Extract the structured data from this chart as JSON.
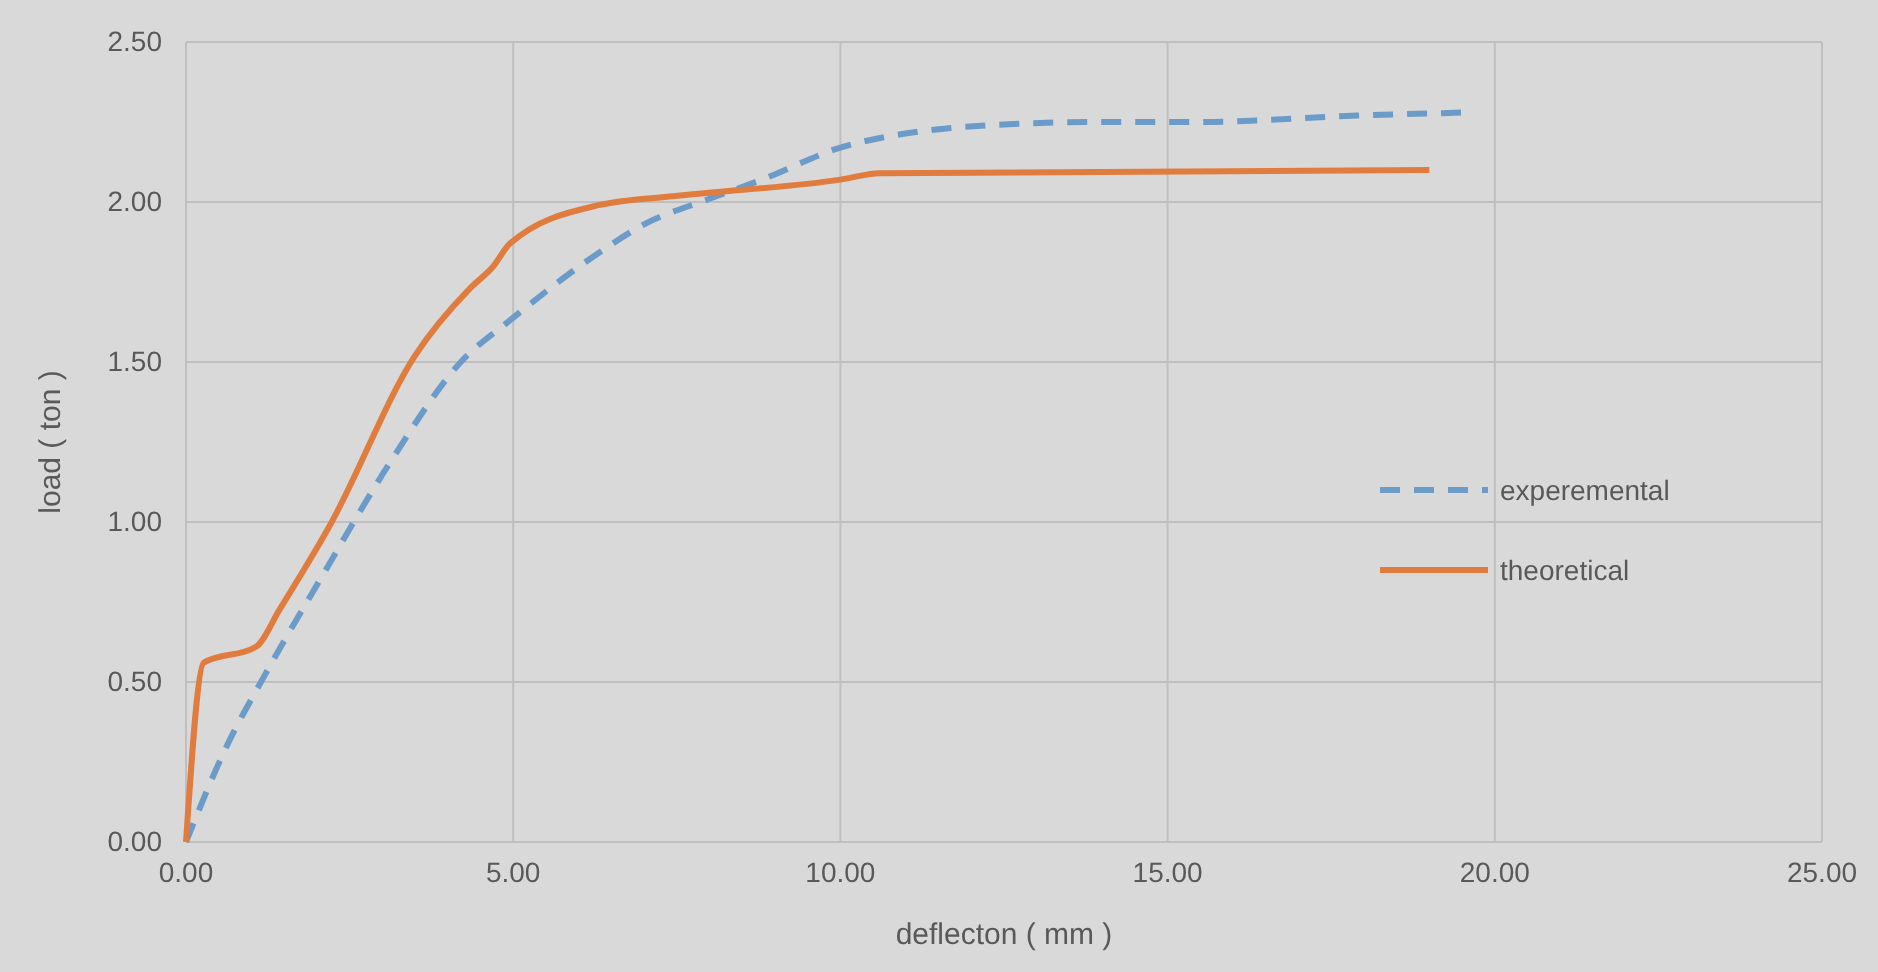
{
  "chart_data": {
    "type": "line",
    "xlabel": "deflecton ( mm )",
    "ylabel": "load ( ton )",
    "xlim": [
      0,
      25
    ],
    "xticks": [
      {
        "value": 0,
        "label": "0.00"
      },
      {
        "value": 5,
        "label": "5.00"
      },
      {
        "value": 10,
        "label": "10.00"
      },
      {
        "value": 15,
        "label": "15.00"
      },
      {
        "value": 20,
        "label": "20.00"
      },
      {
        "value": 25,
        "label": "25.00"
      }
    ],
    "ylim": [
      0,
      2.5
    ],
    "yticks": [
      {
        "value": 0,
        "label": "0.00"
      },
      {
        "value": 0.5,
        "label": "0.50"
      },
      {
        "value": 1,
        "label": "1.00"
      },
      {
        "value": 1.5,
        "label": "1.50"
      },
      {
        "value": 2,
        "label": "2.00"
      },
      {
        "value": 2.5,
        "label": "2.50"
      }
    ],
    "grid": true,
    "legend": "right",
    "series": [
      {
        "name": "experemental",
        "color": "#6b9bc8",
        "line_style": "dashed",
        "x": [
          0,
          0.6,
          1.2,
          2.05,
          3.1,
          4.2,
          4.95,
          6.3,
          7.0,
          8.0,
          8.8,
          10.0,
          11.2,
          12.3,
          14.0,
          15.5,
          17.9,
          19.6
        ],
        "values": [
          0,
          0.29,
          0.52,
          0.82,
          1.18,
          1.5,
          1.63,
          1.84,
          1.93,
          2.01,
          2.07,
          2.17,
          2.22,
          2.24,
          2.25,
          2.25,
          2.27,
          2.28
        ]
      },
      {
        "name": "theoretical",
        "color": "#e07c3e",
        "line_style": "solid",
        "x": [
          0,
          0.27,
          1.07,
          1.44,
          2.2,
          3.5,
          4.34,
          4.7,
          4.95,
          6.3,
          7.55,
          10.0,
          10.6,
          19.0
        ],
        "values": [
          0,
          0.56,
          0.61,
          0.73,
          0.99,
          1.52,
          1.73,
          1.8,
          1.87,
          1.99,
          2.02,
          2.07,
          2.09,
          2.1
        ]
      }
    ]
  }
}
